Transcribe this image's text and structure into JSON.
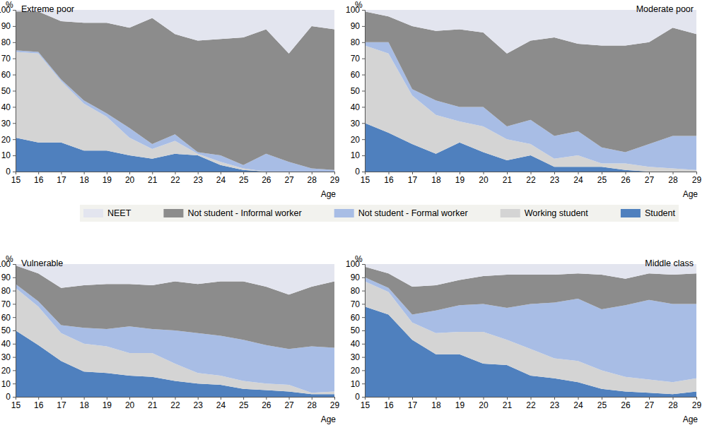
{
  "chart_data": [
    {
      "type": "area",
      "title": "Extreme poor",
      "xlabel": "Age",
      "ylabel": "%",
      "stacked": true,
      "legend": "bottom",
      "x": [
        15,
        16,
        17,
        18,
        19,
        20,
        21,
        22,
        23,
        24,
        25,
        26,
        27,
        28,
        29
      ],
      "xlim": [
        15,
        29
      ],
      "xticks": [
        15,
        16,
        17,
        18,
        19,
        20,
        21,
        22,
        23,
        24,
        25,
        26,
        27,
        28,
        29
      ],
      "ylim": [
        0,
        100
      ],
      "yticks": [
        0,
        10,
        20,
        30,
        40,
        50,
        60,
        70,
        80,
        90,
        100
      ],
      "series": [
        {
          "name": "Student",
          "color": "#4f80be",
          "values": [
            21,
            18,
            18,
            13,
            13,
            10,
            8,
            11,
            10,
            4,
            1,
            0,
            0,
            0,
            0
          ]
        },
        {
          "name": "Working student",
          "color": "#d4d4d4",
          "values": [
            53,
            55,
            38,
            29,
            21,
            11,
            6,
            8,
            1,
            2,
            1,
            0,
            0,
            0,
            0
          ]
        },
        {
          "name": "Not student - Formal worker",
          "color": "#a8bde5",
          "values": [
            1,
            1,
            1,
            2,
            2,
            6,
            3,
            4,
            1,
            4,
            2,
            11,
            6,
            2,
            1
          ]
        },
        {
          "name": "Not student - Informal worker",
          "color": "#8c8c8c",
          "values": [
            24,
            25,
            36,
            48,
            56,
            62,
            78,
            62,
            69,
            72,
            79,
            77,
            67,
            88,
            87
          ]
        },
        {
          "name": "NEET",
          "color": "#e3e5ef",
          "values": [
            1,
            1,
            7,
            8,
            8,
            11,
            5,
            15,
            19,
            18,
            17,
            12,
            27,
            10,
            12
          ]
        }
      ]
    },
    {
      "type": "area",
      "title": "Moderate poor",
      "xlabel": "Age",
      "ylabel": "%",
      "stacked": true,
      "x": [
        15,
        16,
        17,
        18,
        19,
        20,
        21,
        22,
        23,
        24,
        25,
        26,
        27,
        28,
        29
      ],
      "xlim": [
        15,
        29
      ],
      "xticks": [
        15,
        16,
        17,
        18,
        19,
        20,
        21,
        22,
        23,
        24,
        25,
        26,
        27,
        28,
        29
      ],
      "ylim": [
        0,
        100
      ],
      "yticks": [
        0,
        10,
        20,
        30,
        40,
        50,
        60,
        70,
        80,
        90,
        100
      ],
      "series": [
        {
          "name": "Student",
          "color": "#4f80be",
          "values": [
            30,
            24,
            17,
            11,
            18,
            12,
            7,
            10,
            3,
            3,
            3,
            1,
            0,
            0,
            0
          ]
        },
        {
          "name": "Working student",
          "color": "#d4d4d4",
          "values": [
            48,
            49,
            30,
            24,
            13,
            16,
            13,
            7,
            5,
            7,
            2,
            4,
            3,
            2,
            1
          ]
        },
        {
          "name": "Not student - Formal worker",
          "color": "#a8bde5",
          "values": [
            2,
            7,
            4,
            9,
            9,
            12,
            8,
            15,
            14,
            15,
            10,
            7,
            14,
            20,
            21
          ]
        },
        {
          "name": "Not student - Informal worker",
          "color": "#8c8c8c",
          "values": [
            19,
            16,
            39,
            43,
            48,
            46,
            45,
            49,
            61,
            54,
            63,
            66,
            63,
            67,
            63
          ]
        },
        {
          "name": "NEET",
          "color": "#e3e5ef",
          "values": [
            1,
            4,
            10,
            13,
            12,
            14,
            27,
            19,
            17,
            21,
            22,
            22,
            20,
            11,
            15
          ]
        }
      ]
    },
    {
      "type": "area",
      "title": "Vulnerable",
      "xlabel": "Age",
      "ylabel": "%",
      "stacked": true,
      "x": [
        15,
        16,
        17,
        18,
        19,
        20,
        21,
        22,
        23,
        24,
        25,
        26,
        27,
        28,
        29
      ],
      "xlim": [
        15,
        29
      ],
      "xticks": [
        15,
        16,
        17,
        18,
        19,
        20,
        21,
        22,
        23,
        24,
        25,
        26,
        27,
        28,
        29
      ],
      "ylim": [
        0,
        100
      ],
      "yticks": [
        0,
        10,
        20,
        30,
        40,
        50,
        60,
        70,
        80,
        90,
        100
      ],
      "series": [
        {
          "name": "Student",
          "color": "#4f80be",
          "values": [
            50,
            39,
            27,
            19,
            18,
            16,
            15,
            12,
            10,
            9,
            6,
            5,
            4,
            2,
            2
          ]
        },
        {
          "name": "Working student",
          "color": "#d4d4d4",
          "values": [
            32,
            29,
            21,
            21,
            20,
            17,
            18,
            13,
            8,
            7,
            6,
            5,
            5,
            1,
            2
          ]
        },
        {
          "name": "Not student - Formal worker",
          "color": "#a8bde5",
          "values": [
            3,
            4,
            6,
            12,
            13,
            20,
            18,
            25,
            30,
            30,
            31,
            29,
            27,
            35,
            33
          ]
        },
        {
          "name": "Not student - Informal worker",
          "color": "#8c8c8c",
          "values": [
            14,
            21,
            28,
            32,
            34,
            32,
            33,
            37,
            37,
            41,
            44,
            44,
            41,
            45,
            50
          ]
        },
        {
          "name": "NEET",
          "color": "#e3e5ef",
          "values": [
            1,
            7,
            18,
            16,
            15,
            15,
            16,
            13,
            15,
            13,
            13,
            17,
            23,
            17,
            13
          ]
        }
      ]
    },
    {
      "type": "area",
      "title": "Middle class",
      "xlabel": "Age",
      "ylabel": "%",
      "stacked": true,
      "x": [
        15,
        16,
        17,
        18,
        19,
        20,
        21,
        22,
        23,
        24,
        25,
        26,
        27,
        28,
        29
      ],
      "xlim": [
        15,
        29
      ],
      "xticks": [
        15,
        16,
        17,
        18,
        19,
        20,
        21,
        22,
        23,
        24,
        25,
        26,
        27,
        28,
        29
      ],
      "ylim": [
        0,
        100
      ],
      "yticks": [
        0,
        10,
        20,
        30,
        40,
        50,
        60,
        70,
        80,
        90,
        100
      ],
      "series": [
        {
          "name": "Student",
          "color": "#4f80be",
          "values": [
            68,
            62,
            43,
            32,
            32,
            25,
            24,
            16,
            14,
            11,
            6,
            4,
            3,
            2,
            4
          ]
        },
        {
          "name": "Working student",
          "color": "#d4d4d4",
          "values": [
            19,
            17,
            13,
            16,
            17,
            24,
            19,
            20,
            15,
            16,
            14,
            11,
            10,
            9,
            10
          ]
        },
        {
          "name": "Not student - Formal worker",
          "color": "#a8bde5",
          "values": [
            3,
            3,
            6,
            17,
            20,
            21,
            24,
            34,
            42,
            47,
            46,
            54,
            60,
            59,
            56
          ]
        },
        {
          "name": "Not student - Informal worker",
          "color": "#8c8c8c",
          "values": [
            8,
            11,
            21,
            19,
            19,
            21,
            25,
            22,
            21,
            19,
            26,
            20,
            20,
            22,
            23
          ]
        },
        {
          "name": "NEET",
          "color": "#e3e5ef",
          "values": [
            2,
            7,
            17,
            16,
            12,
            9,
            8,
            8,
            8,
            7,
            8,
            11,
            7,
            8,
            7
          ]
        }
      ]
    }
  ]
}
